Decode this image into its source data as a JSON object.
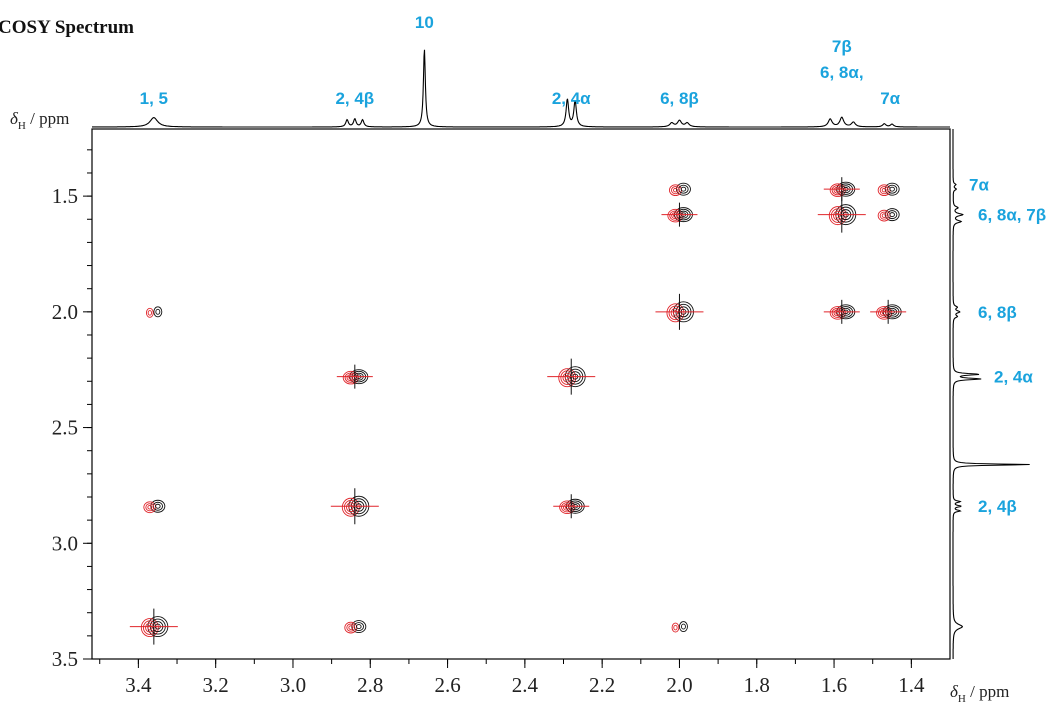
{
  "chart_data": {
    "type": "heatmap",
    "title": "COSY Spectrum",
    "xlabel": {
      "symbol": "δ",
      "sub": "H",
      "unit": " / ppm"
    },
    "ylabel": {
      "symbol": "δ",
      "sub": "H",
      "unit": " / ppm"
    },
    "xlim": [
      3.52,
      1.3
    ],
    "ylim": [
      1.21,
      3.5
    ],
    "x_ticks": [
      "3.4",
      "3.2",
      "3.0",
      "2.8",
      "2.6",
      "2.4",
      "2.2",
      "2.0",
      "1.8",
      "1.6",
      "1.4"
    ],
    "y_ticks": [
      "1.5",
      "2.0",
      "2.5",
      "3.0",
      "3.5"
    ],
    "series": [
      {
        "name": "positive contours",
        "color": "#111111"
      },
      {
        "name": "negative contours",
        "color": "#e0242a"
      }
    ],
    "top_projection_labels": [
      {
        "text": "1, 5",
        "ppm": 3.36
      },
      {
        "text": "2, 4β",
        "ppm": 2.84
      },
      {
        "text": "10",
        "ppm": 2.66
      },
      {
        "text": "2, 4α",
        "ppm": 2.28
      },
      {
        "text": "6, 8β",
        "ppm": 2.0
      },
      {
        "text": "6, 8α,",
        "ppm": 1.58
      },
      {
        "text": "7β",
        "ppm": 1.58
      },
      {
        "text": "7α",
        "ppm": 1.46
      }
    ],
    "side_projection_labels": [
      {
        "text": "7α",
        "ppm": 1.45
      },
      {
        "text": "6, 8α, 7β",
        "ppm": 1.58
      },
      {
        "text": "6, 8β",
        "ppm": 2.0
      },
      {
        "text": "2, 4α",
        "ppm": 2.28
      },
      {
        "text": "2, 4β",
        "ppm": 2.84
      }
    ],
    "projection_peaks": [
      {
        "ppm": 3.36,
        "height": 0.12,
        "width": 0.012
      },
      {
        "ppm": 2.86,
        "height": 0.09,
        "width": 0.004
      },
      {
        "ppm": 2.84,
        "height": 0.1,
        "width": 0.004
      },
      {
        "ppm": 2.82,
        "height": 0.09,
        "width": 0.004
      },
      {
        "ppm": 2.66,
        "height": 1.0,
        "width": 0.003
      },
      {
        "ppm": 2.29,
        "height": 0.35,
        "width": 0.004
      },
      {
        "ppm": 2.27,
        "height": 0.33,
        "width": 0.004
      },
      {
        "ppm": 2.02,
        "height": 0.05,
        "width": 0.006
      },
      {
        "ppm": 2.0,
        "height": 0.08,
        "width": 0.006
      },
      {
        "ppm": 1.98,
        "height": 0.05,
        "width": 0.006
      },
      {
        "ppm": 1.61,
        "height": 0.1,
        "width": 0.006
      },
      {
        "ppm": 1.58,
        "height": 0.12,
        "width": 0.006
      },
      {
        "ppm": 1.55,
        "height": 0.06,
        "width": 0.006
      },
      {
        "ppm": 1.47,
        "height": 0.04,
        "width": 0.005
      },
      {
        "ppm": 1.45,
        "height": 0.035,
        "width": 0.005
      }
    ],
    "cross_peaks": [
      {
        "x": 3.36,
        "y": 2.0,
        "type": "small"
      },
      {
        "x": 3.36,
        "y": 2.84,
        "type": "medium"
      },
      {
        "x": 3.36,
        "y": 3.36,
        "type": "diag"
      },
      {
        "x": 2.84,
        "y": 2.28,
        "type": "large"
      },
      {
        "x": 2.84,
        "y": 2.84,
        "type": "diag"
      },
      {
        "x": 2.84,
        "y": 3.36,
        "type": "medium"
      },
      {
        "x": 2.28,
        "y": 2.28,
        "type": "diag"
      },
      {
        "x": 2.28,
        "y": 2.84,
        "type": "large"
      },
      {
        "x": 2.0,
        "y": 1.47,
        "type": "medium"
      },
      {
        "x": 2.0,
        "y": 1.58,
        "type": "large"
      },
      {
        "x": 2.0,
        "y": 2.0,
        "type": "diag"
      },
      {
        "x": 2.0,
        "y": 3.36,
        "type": "small"
      },
      {
        "x": 1.58,
        "y": 1.47,
        "type": "large"
      },
      {
        "x": 1.58,
        "y": 1.58,
        "type": "diag"
      },
      {
        "x": 1.58,
        "y": 2.0,
        "type": "large"
      },
      {
        "x": 1.46,
        "y": 1.47,
        "type": "medium"
      },
      {
        "x": 1.46,
        "y": 1.58,
        "type": "medium"
      },
      {
        "x": 1.46,
        "y": 2.0,
        "type": "large"
      }
    ]
  }
}
